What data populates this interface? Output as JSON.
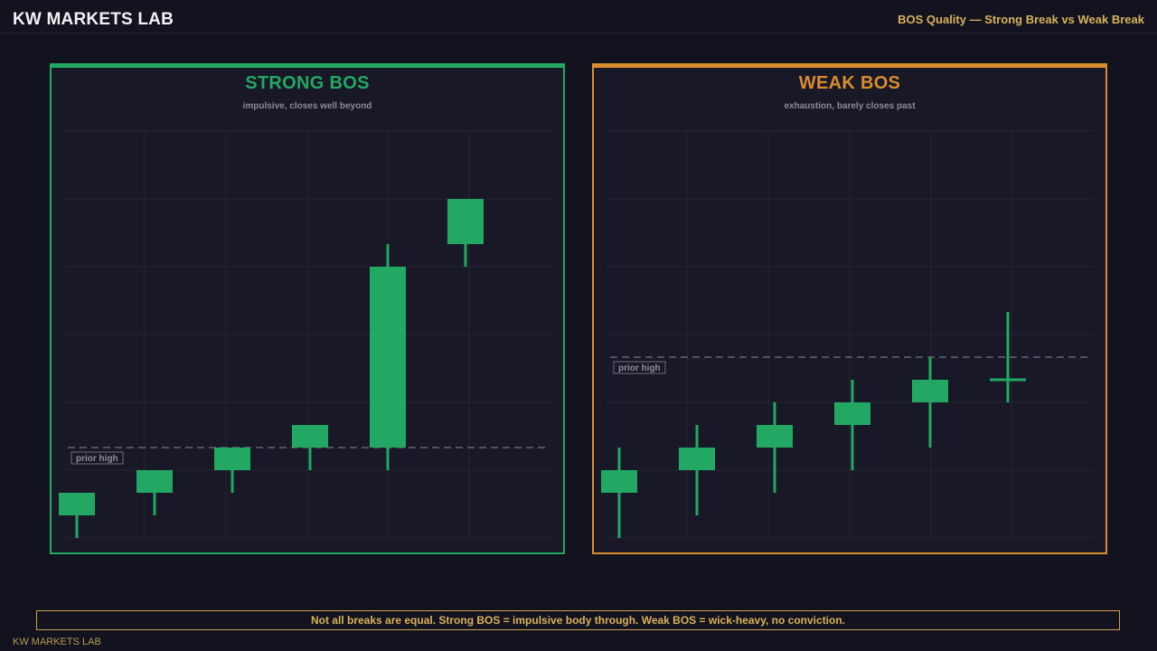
{
  "header": {
    "brand": "KW MARKETS LAB",
    "subtitle": "BOS Quality — Strong Break vs Weak Break"
  },
  "colors": {
    "background": "#13131f",
    "panel": "#181826",
    "candle_up": "#22a863",
    "strong_accent": "#22a863",
    "weak_accent": "#d98c30",
    "gold": "#d9b25c",
    "reference_line": "#8a8a96"
  },
  "chart_data": [
    {
      "type": "candlestick",
      "title": "STRONG BOS",
      "subtitle": "impulsive, closes well beyond",
      "accent": "#22a863",
      "reference_line": {
        "label": "prior high",
        "value": 100
      },
      "ylim": [
        96,
        114
      ],
      "grid": true,
      "candles": [
        {
          "open": 97,
          "high": 98,
          "low": 96,
          "close": 98
        },
        {
          "open": 98,
          "high": 99,
          "low": 97,
          "close": 99
        },
        {
          "open": 99,
          "high": 100,
          "low": 98,
          "close": 100
        },
        {
          "open": 100,
          "high": 101,
          "low": 99,
          "close": 101
        },
        {
          "open": 100,
          "high": 109,
          "low": 99,
          "close": 108
        },
        {
          "open": 109,
          "high": 111,
          "low": 108,
          "close": 111
        }
      ]
    },
    {
      "type": "candlestick",
      "title": "WEAK BOS",
      "subtitle": "exhaustion, barely closes past",
      "accent": "#d98c30",
      "reference_line": {
        "label": "prior high",
        "value": 100
      },
      "ylim": [
        92,
        110
      ],
      "grid": true,
      "candles": [
        {
          "open": 94,
          "high": 96,
          "low": 92,
          "close": 95
        },
        {
          "open": 95,
          "high": 97,
          "low": 93,
          "close": 96
        },
        {
          "open": 96,
          "high": 98,
          "low": 94,
          "close": 97
        },
        {
          "open": 97,
          "high": 99,
          "low": 95,
          "close": 98
        },
        {
          "open": 98,
          "high": 100,
          "low": 96,
          "close": 99
        },
        {
          "open": 99,
          "high": 102,
          "low": 98,
          "close": 99
        }
      ]
    }
  ],
  "banner": "Not all breaks are equal. Strong BOS = impulsive body through. Weak BOS = wick-heavy, no conviction.",
  "footer": "KW MARKETS LAB"
}
